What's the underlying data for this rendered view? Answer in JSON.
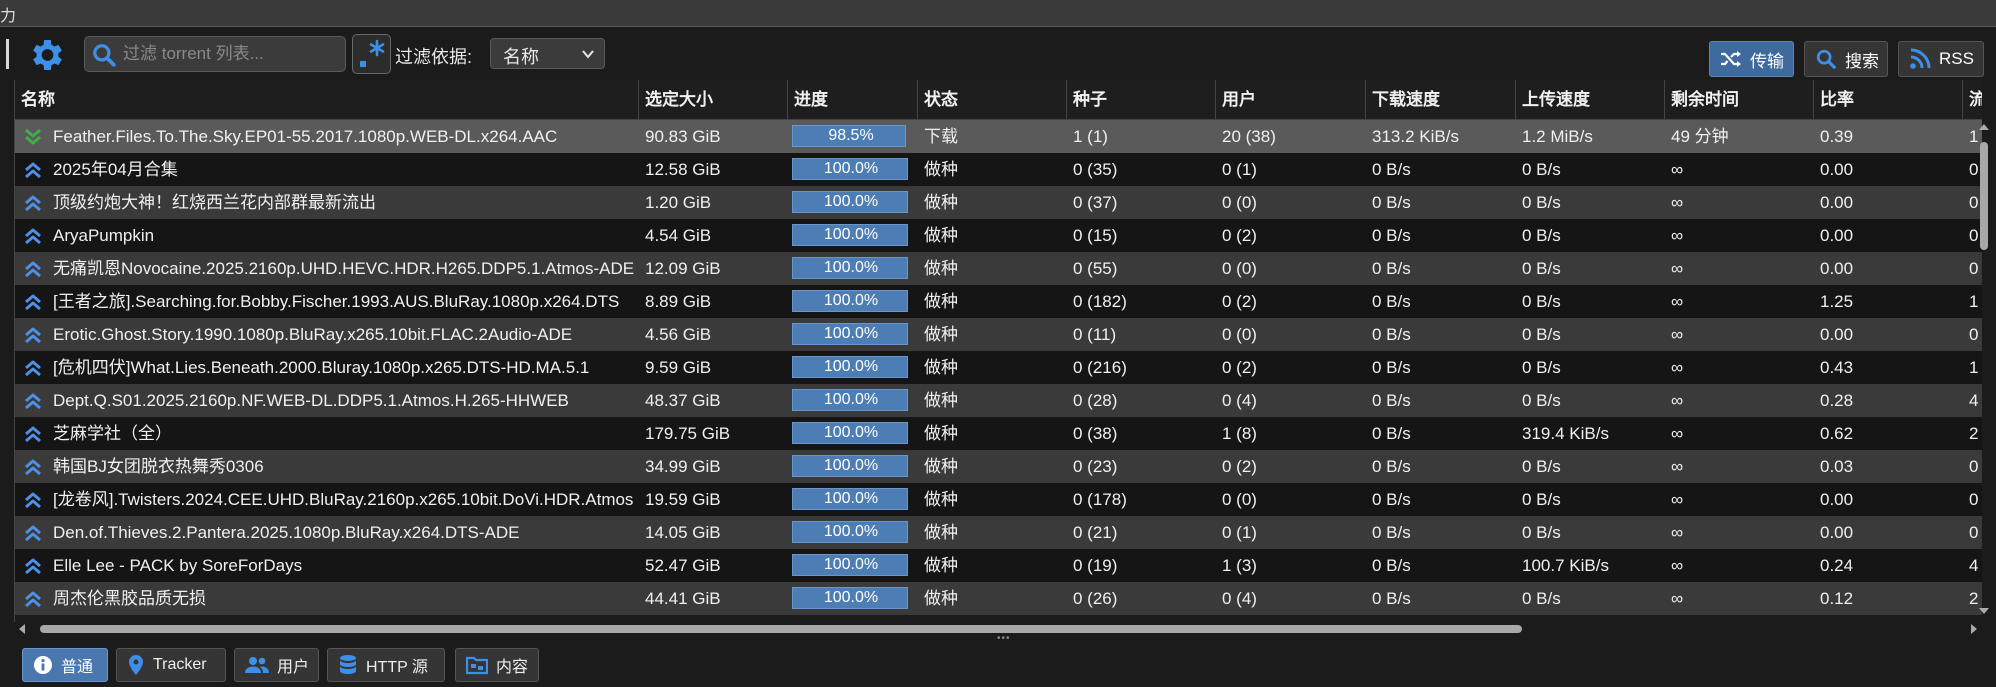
{
  "window": {
    "title": "力"
  },
  "toolbar": {
    "search_placeholder": "过滤 torrent 列表...",
    "filter_label": "过滤依据:",
    "filter_value": "名称",
    "transfer_label": "传输",
    "search_label": "搜索",
    "rss_label": "RSS"
  },
  "columns": [
    "名称",
    "选定大小",
    "进度",
    "状态",
    "种子",
    "用户",
    "下载速度",
    "上传速度",
    "剩余时间",
    "比率",
    "流行"
  ],
  "rows": [
    {
      "name": "Feather.Files.To.The.Sky.EP01-55.2017.1080p.WEB-DL.x264.AAC",
      "size": "90.83 GiB",
      "progress": 98.5,
      "progress_label": "98.5%",
      "status": "下载",
      "seeds": "1 (1)",
      "peers": "20 (38)",
      "down": "313.2 KiB/s",
      "up": "1.2 MiB/s",
      "eta": "49 分钟",
      "ratio": "0.39",
      "pop": "1",
      "icon": "download-arrow-icon"
    },
    {
      "name": "2025年04月合集",
      "size": "12.58 GiB",
      "progress": 100,
      "progress_label": "100.0%",
      "status": "做种",
      "seeds": "0 (35)",
      "peers": "0 (1)",
      "down": "0 B/s",
      "up": "0 B/s",
      "eta": "∞",
      "ratio": "0.00",
      "pop": "0",
      "icon": "seeding-arrow-icon"
    },
    {
      "name": "顶级约炮大神！红烧西兰花内部群最新流出",
      "size": "1.20 GiB",
      "progress": 100,
      "progress_label": "100.0%",
      "status": "做种",
      "seeds": "0 (37)",
      "peers": "0 (0)",
      "down": "0 B/s",
      "up": "0 B/s",
      "eta": "∞",
      "ratio": "0.00",
      "pop": "0",
      "icon": "seeding-arrow-icon"
    },
    {
      "name": "AryaPumpkin",
      "size": "4.54 GiB",
      "progress": 100,
      "progress_label": "100.0%",
      "status": "做种",
      "seeds": "0 (15)",
      "peers": "0 (2)",
      "down": "0 B/s",
      "up": "0 B/s",
      "eta": "∞",
      "ratio": "0.00",
      "pop": "0",
      "icon": "seeding-arrow-icon"
    },
    {
      "name": "无痛凯恩Novocaine.2025.2160p.UHD.HEVC.HDR.H265.DDP5.1.Atmos-ADE",
      "size": "12.09 GiB",
      "progress": 100,
      "progress_label": "100.0%",
      "status": "做种",
      "seeds": "0 (55)",
      "peers": "0 (0)",
      "down": "0 B/s",
      "up": "0 B/s",
      "eta": "∞",
      "ratio": "0.00",
      "pop": "0",
      "icon": "seeding-arrow-icon"
    },
    {
      "name": "[王者之旅].Searching.for.Bobby.Fischer.1993.AUS.BluRay.1080p.x264.DTS",
      "size": "8.89 GiB",
      "progress": 100,
      "progress_label": "100.0%",
      "status": "做种",
      "seeds": "0 (182)",
      "peers": "0 (2)",
      "down": "0 B/s",
      "up": "0 B/s",
      "eta": "∞",
      "ratio": "1.25",
      "pop": "1",
      "icon": "seeding-arrow-icon"
    },
    {
      "name": "Erotic.Ghost.Story.1990.1080p.BluRay.x265.10bit.FLAC.2Audio-ADE",
      "size": "4.56 GiB",
      "progress": 100,
      "progress_label": "100.0%",
      "status": "做种",
      "seeds": "0 (11)",
      "peers": "0 (0)",
      "down": "0 B/s",
      "up": "0 B/s",
      "eta": "∞",
      "ratio": "0.00",
      "pop": "0",
      "icon": "seeding-arrow-icon"
    },
    {
      "name": "[危机四伏]What.Lies.Beneath.2000.Bluray.1080p.x265.DTS-HD.MA.5.1",
      "size": "9.59 GiB",
      "progress": 100,
      "progress_label": "100.0%",
      "status": "做种",
      "seeds": "0 (216)",
      "peers": "0 (2)",
      "down": "0 B/s",
      "up": "0 B/s",
      "eta": "∞",
      "ratio": "0.43",
      "pop": "1",
      "icon": "seeding-arrow-icon"
    },
    {
      "name": "Dept.Q.S01.2025.2160p.NF.WEB-DL.DDP5.1.Atmos.H.265-HHWEB",
      "size": "48.37 GiB",
      "progress": 100,
      "progress_label": "100.0%",
      "status": "做种",
      "seeds": "0 (28)",
      "peers": "0 (4)",
      "down": "0 B/s",
      "up": "0 B/s",
      "eta": "∞",
      "ratio": "0.28",
      "pop": "4",
      "icon": "seeding-arrow-icon"
    },
    {
      "name": "芝麻学社（全）",
      "size": "179.75 GiB",
      "progress": 100,
      "progress_label": "100.0%",
      "status": "做种",
      "seeds": "0 (38)",
      "peers": "1 (8)",
      "down": "0 B/s",
      "up": "319.4 KiB/s",
      "eta": "∞",
      "ratio": "0.62",
      "pop": "2",
      "icon": "seeding-arrow-icon"
    },
    {
      "name": "韩国BJ女团脱衣热舞秀0306",
      "size": "34.99 GiB",
      "progress": 100,
      "progress_label": "100.0%",
      "status": "做种",
      "seeds": "0 (23)",
      "peers": "0 (2)",
      "down": "0 B/s",
      "up": "0 B/s",
      "eta": "∞",
      "ratio": "0.03",
      "pop": "0",
      "icon": "seeding-arrow-icon"
    },
    {
      "name": "[龙卷风].Twisters.2024.CEE.UHD.BluRay.2160p.x265.10bit.DoVi.HDR.Atmos",
      "size": "19.59 GiB",
      "progress": 100,
      "progress_label": "100.0%",
      "status": "做种",
      "seeds": "0 (178)",
      "peers": "0 (0)",
      "down": "0 B/s",
      "up": "0 B/s",
      "eta": "∞",
      "ratio": "0.00",
      "pop": "0",
      "icon": "seeding-arrow-icon"
    },
    {
      "name": "Den.of.Thieves.2.Pantera.2025.1080p.BluRay.x264.DTS-ADE",
      "size": "14.05 GiB",
      "progress": 100,
      "progress_label": "100.0%",
      "status": "做种",
      "seeds": "0 (21)",
      "peers": "0 (1)",
      "down": "0 B/s",
      "up": "0 B/s",
      "eta": "∞",
      "ratio": "0.00",
      "pop": "0",
      "icon": "seeding-arrow-icon"
    },
    {
      "name": "Elle Lee - PACK by SoreForDays",
      "size": "52.47 GiB",
      "progress": 100,
      "progress_label": "100.0%",
      "status": "做种",
      "seeds": "0 (19)",
      "peers": "1 (3)",
      "down": "0 B/s",
      "up": "100.7 KiB/s",
      "eta": "∞",
      "ratio": "0.24",
      "pop": "4",
      "icon": "seeding-arrow-icon"
    },
    {
      "name": "周杰伦黑胶品质无损",
      "size": "44.41 GiB",
      "progress": 100,
      "progress_label": "100.0%",
      "status": "做种",
      "seeds": "0 (26)",
      "peers": "0 (4)",
      "down": "0 B/s",
      "up": "0 B/s",
      "eta": "∞",
      "ratio": "0.12",
      "pop": "2",
      "icon": "seeding-arrow-icon"
    }
  ],
  "bottom_tabs": [
    {
      "label": "普通",
      "icon": "info-icon",
      "active": true
    },
    {
      "label": "Tracker",
      "icon": "location-pin-icon",
      "active": false
    },
    {
      "label": "用户",
      "icon": "users-icon",
      "active": false
    },
    {
      "label": "HTTP 源",
      "icon": "database-icon",
      "active": false
    },
    {
      "label": "内容",
      "icon": "folder-icon",
      "active": false
    }
  ],
  "colors": {
    "accent": "#4a77ad",
    "progress": "#4d7db5",
    "seeding_icon": "#4f8fe6",
    "download_icon": "#3fae49"
  }
}
